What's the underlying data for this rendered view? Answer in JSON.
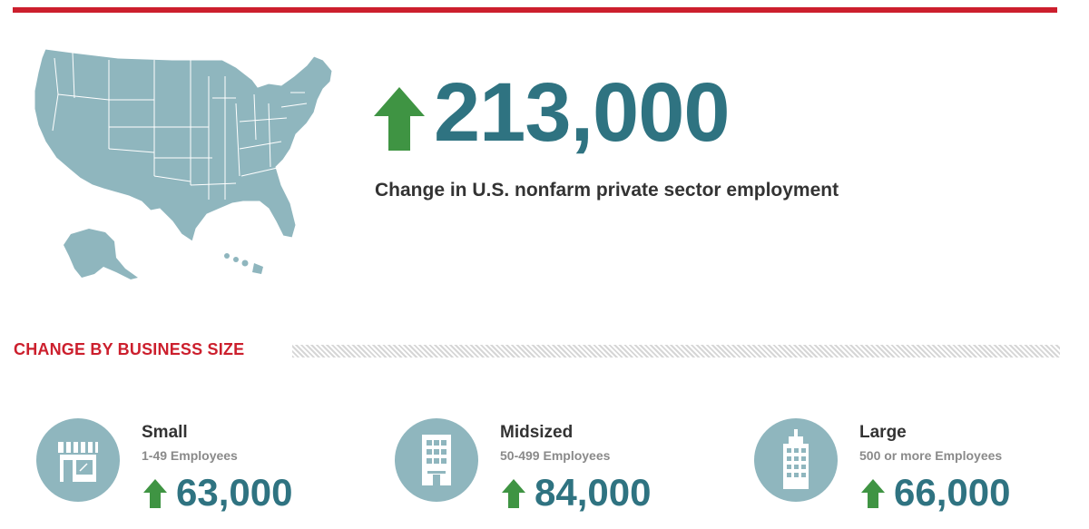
{
  "colors": {
    "accent_red": "#cc1f2d",
    "teal": "#2f7381",
    "arrow_green": "#3f9443",
    "map_fill": "#8fb6be"
  },
  "map": {
    "icon": "us-map-icon"
  },
  "headline": {
    "value": "213,000",
    "direction": "up",
    "caption": "Change in U.S. nonfarm private sector employment"
  },
  "section": {
    "title": "CHANGE BY BUSINESS SIZE"
  },
  "sizes": [
    {
      "name": "Small",
      "range": "1-49 Employees",
      "value": "63,000",
      "direction": "up",
      "icon": "storefront-icon"
    },
    {
      "name": "Midsized",
      "range": "50-499 Employees",
      "value": "84,000",
      "direction": "up",
      "icon": "office-building-icon"
    },
    {
      "name": "Large",
      "range": "500 or more Employees",
      "value": "66,000",
      "direction": "up",
      "icon": "skyscraper-icon"
    }
  ]
}
